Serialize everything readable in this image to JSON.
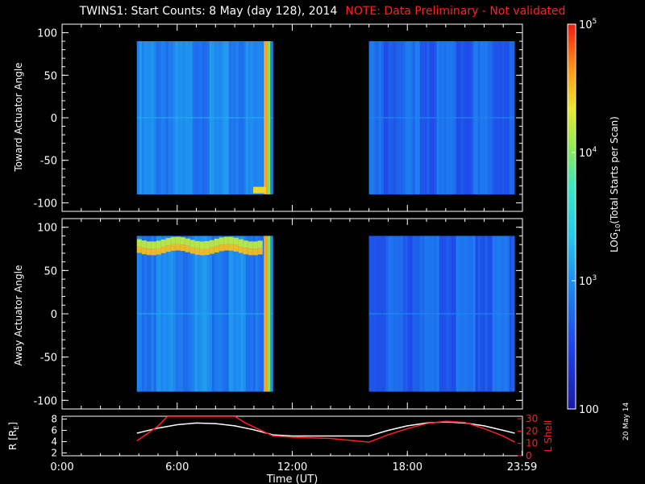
{
  "title": {
    "main": "TWINS1: Start Counts:  8 May (day 128), 2014",
    "note": "NOTE: Data Preliminary - Not validated"
  },
  "colors": {
    "background": "#000000",
    "axis": "#ffffff",
    "note": "#ff2020",
    "r_line": "#ffffff",
    "lshell_line": "#ff2020"
  },
  "date_stamp": "20 May 14",
  "colorbar": {
    "label": "LOG10(Total Starts per Scan)",
    "label_main": "LOG",
    "label_sub": "10",
    "label_rest": "(Total Starts per Scan)",
    "ticks": [
      {
        "base": "10",
        "exp": "5",
        "value": 100000
      },
      {
        "base": "10",
        "exp": "4",
        "value": 10000
      },
      {
        "base": "10",
        "exp": "3",
        "value": 1000
      },
      {
        "base": "100",
        "exp": "",
        "value": 100
      }
    ],
    "range": [
      100,
      100000
    ],
    "scale": "log"
  },
  "chart_data": [
    {
      "type": "heatmap",
      "panel": "toward",
      "ylabel": "Toward Actuator Angle",
      "yticks": [
        "100",
        "50",
        "0",
        "-50",
        "-100"
      ],
      "ylim": [
        -110,
        110
      ],
      "xlim": [
        0,
        24
      ],
      "data_blocks": [
        {
          "x_start": 3.9,
          "x_end": 11.0,
          "y_range": [
            -90,
            90
          ],
          "typical_log": 3.0
        },
        {
          "x_start": 16.0,
          "x_end": 23.6,
          "y_range": [
            -90,
            90
          ],
          "typical_log": 2.8
        }
      ],
      "features": [
        {
          "x": 10.6,
          "log": 4.6,
          "note": "bright vertical band"
        },
        {
          "x": 10.3,
          "y": -85,
          "log": 4.4
        }
      ]
    },
    {
      "type": "heatmap",
      "panel": "away",
      "ylabel": "Away Actuator Angle",
      "yticks": [
        "100",
        "50",
        "0",
        "-50",
        "-100"
      ],
      "ylim": [
        -110,
        110
      ],
      "xlim": [
        0,
        24
      ],
      "data_blocks": [
        {
          "x_start": 3.9,
          "x_end": 11.0,
          "y_range": [
            -90,
            90
          ],
          "typical_log": 3.0
        },
        {
          "x_start": 16.0,
          "x_end": 23.6,
          "y_range": [
            -90,
            90
          ],
          "typical_log": 2.8
        }
      ],
      "features": [
        {
          "x_range": [
            3.9,
            10.5
          ],
          "y_range": [
            65,
            90
          ],
          "log": 4.5,
          "note": "high-count band"
        },
        {
          "x": 10.6,
          "log": 4.6
        }
      ]
    },
    {
      "type": "line",
      "panel": "orbit",
      "ylabel": "R [RE]",
      "ylabel_main": "R [R",
      "ylabel_sub": "E",
      "ylabel_end": "]",
      "y2label": "L Shell",
      "xlabel": "Time (UT)",
      "xticks": [
        "0:00",
        "6:00",
        "12:00",
        "18:00",
        "23:59"
      ],
      "xtick_hours": [
        0,
        6,
        12,
        18,
        23.98
      ],
      "yticks_left": [
        "8",
        "6",
        "4",
        "2"
      ],
      "yticks_right": [
        "30",
        "20",
        "10",
        "0"
      ],
      "ylim_left": [
        1.5,
        8.5
      ],
      "ylim_right": [
        0,
        32
      ],
      "series": [
        {
          "name": "R",
          "axis": "left",
          "x": [
            3.9,
            5.0,
            6.0,
            7.0,
            8.0,
            9.0,
            10.0,
            11.0,
            12.0,
            14.0,
            16.0,
            17.0,
            18.0,
            19.0,
            20.0,
            21.0,
            22.0,
            23.0,
            23.6
          ],
          "y": [
            5.5,
            6.4,
            7.0,
            7.3,
            7.2,
            6.8,
            6.1,
            5.2,
            5.0,
            5.0,
            5.0,
            6.0,
            6.8,
            7.3,
            7.5,
            7.3,
            6.8,
            6.0,
            5.5
          ]
        },
        {
          "name": "L Shell",
          "axis": "right",
          "x": [
            3.9,
            5.0,
            5.5,
            9.0,
            9.5,
            11.0,
            12.0,
            14.0,
            16.0,
            17.0,
            18.0,
            19.0,
            20.0,
            21.0,
            22.0,
            23.0,
            23.6
          ],
          "y": [
            12,
            24,
            32,
            32,
            27,
            16,
            15,
            14,
            11,
            17,
            22,
            26,
            28,
            27,
            22,
            16,
            11
          ]
        }
      ]
    }
  ]
}
